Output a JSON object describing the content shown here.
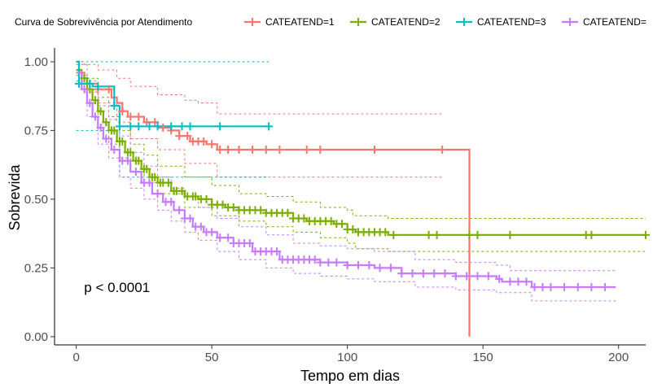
{
  "chart_data": {
    "type": "line",
    "subtype": "kaplan-meier",
    "title": "",
    "xlabel": "Tempo em dias",
    "ylabel": "Sobrevida",
    "xlim": [
      -8,
      210
    ],
    "ylim": [
      -0.03,
      1.05
    ],
    "xticks": [
      0,
      50,
      100,
      150,
      200
    ],
    "yticks": [
      0.0,
      0.25,
      0.5,
      0.75,
      1.0
    ],
    "xtick_labels": [
      "0",
      "50",
      "100",
      "150",
      "200"
    ],
    "ytick_labels": [
      "0.00",
      "0.25",
      "0.50",
      "0.75",
      "1.00"
    ],
    "grid": false,
    "legend": {
      "placement": "top",
      "title": "Curva de Sobrevivência por Atendimento",
      "entries": [
        "CATEATEND=1",
        "CATEATEND=2",
        "CATEATEND=3",
        "CATEATEND="
      ]
    },
    "annotations": [
      {
        "text": "p < 0.0001",
        "x": 2,
        "y": 0.18
      }
    ],
    "series": [
      {
        "name": "CATEATEND=1",
        "color": "#F8766D",
        "survival": [
          [
            0,
            1.0
          ],
          [
            1,
            0.96
          ],
          [
            3,
            0.94
          ],
          [
            4,
            0.92
          ],
          [
            8,
            0.9
          ],
          [
            13,
            0.87
          ],
          [
            15,
            0.85
          ],
          [
            17,
            0.82
          ],
          [
            19,
            0.8
          ],
          [
            25,
            0.78
          ],
          [
            30,
            0.76
          ],
          [
            35,
            0.75
          ],
          [
            38,
            0.73
          ],
          [
            42,
            0.71
          ],
          [
            48,
            0.7
          ],
          [
            52,
            0.68
          ],
          [
            145,
            0.68
          ],
          [
            145,
            0.0
          ]
        ],
        "upper": [
          [
            0,
            1.0
          ],
          [
            3,
            0.99
          ],
          [
            8,
            0.97
          ],
          [
            15,
            0.94
          ],
          [
            20,
            0.91
          ],
          [
            30,
            0.88
          ],
          [
            40,
            0.86
          ],
          [
            45,
            0.85
          ],
          [
            52,
            0.81
          ],
          [
            135,
            0.81
          ]
        ],
        "lower": [
          [
            0,
            0.93
          ],
          [
            3,
            0.89
          ],
          [
            8,
            0.85
          ],
          [
            15,
            0.78
          ],
          [
            20,
            0.72
          ],
          [
            30,
            0.68
          ],
          [
            40,
            0.63
          ],
          [
            52,
            0.58
          ],
          [
            135,
            0.58
          ]
        ],
        "censor_x": [
          8,
          12,
          17,
          20,
          23,
          26,
          29,
          32,
          35,
          38,
          41,
          43,
          45,
          47,
          50,
          53,
          56,
          60,
          65,
          70,
          75,
          85,
          90,
          110,
          135
        ]
      },
      {
        "name": "CATEATEND=2",
        "color": "#7CAE00",
        "survival": [
          [
            0,
            0.97
          ],
          [
            2,
            0.94
          ],
          [
            4,
            0.9
          ],
          [
            6,
            0.86
          ],
          [
            8,
            0.82
          ],
          [
            10,
            0.78
          ],
          [
            12,
            0.75
          ],
          [
            15,
            0.71
          ],
          [
            18,
            0.67
          ],
          [
            21,
            0.64
          ],
          [
            24,
            0.61
          ],
          [
            27,
            0.58
          ],
          [
            30,
            0.56
          ],
          [
            35,
            0.53
          ],
          [
            40,
            0.51
          ],
          [
            45,
            0.5
          ],
          [
            50,
            0.48
          ],
          [
            55,
            0.47
          ],
          [
            60,
            0.46
          ],
          [
            70,
            0.45
          ],
          [
            75,
            0.45
          ],
          [
            80,
            0.43
          ],
          [
            85,
            0.42
          ],
          [
            95,
            0.41
          ],
          [
            100,
            0.39
          ],
          [
            103,
            0.38
          ],
          [
            115,
            0.37
          ],
          [
            210,
            0.37
          ]
        ],
        "upper": [
          [
            0,
            0.99
          ],
          [
            4,
            0.94
          ],
          [
            8,
            0.87
          ],
          [
            12,
            0.8
          ],
          [
            16,
            0.75
          ],
          [
            20,
            0.7
          ],
          [
            25,
            0.66
          ],
          [
            30,
            0.62
          ],
          [
            40,
            0.58
          ],
          [
            50,
            0.55
          ],
          [
            60,
            0.52
          ],
          [
            70,
            0.51
          ],
          [
            80,
            0.49
          ],
          [
            90,
            0.47
          ],
          [
            100,
            0.46
          ],
          [
            102,
            0.44
          ],
          [
            115,
            0.43
          ],
          [
            210,
            0.43
          ]
        ],
        "lower": [
          [
            0,
            0.95
          ],
          [
            4,
            0.85
          ],
          [
            8,
            0.77
          ],
          [
            12,
            0.7
          ],
          [
            16,
            0.65
          ],
          [
            20,
            0.6
          ],
          [
            25,
            0.56
          ],
          [
            30,
            0.52
          ],
          [
            40,
            0.47
          ],
          [
            50,
            0.44
          ],
          [
            60,
            0.42
          ],
          [
            70,
            0.4
          ],
          [
            80,
            0.38
          ],
          [
            90,
            0.36
          ],
          [
            100,
            0.34
          ],
          [
            103,
            0.32
          ],
          [
            115,
            0.31
          ],
          [
            210,
            0.31
          ]
        ],
        "censor_x": [
          3,
          5,
          7,
          9,
          11,
          13,
          14,
          16,
          17,
          19,
          20,
          22,
          23,
          25,
          26,
          28,
          29,
          31,
          32,
          34,
          36,
          37,
          39,
          41,
          43,
          44,
          46,
          48,
          50,
          52,
          54,
          56,
          58,
          60,
          62,
          64,
          66,
          68,
          70,
          72,
          74,
          76,
          78,
          80,
          82,
          84,
          86,
          88,
          90,
          92,
          94,
          96,
          98,
          100,
          102,
          104,
          106,
          108,
          110,
          112,
          114,
          117,
          130,
          133,
          145,
          148,
          160,
          188,
          190,
          210
        ]
      },
      {
        "name": "CATEATEND=3",
        "color": "#00BFC4",
        "survival": [
          [
            0,
            1.0
          ],
          [
            1,
            0.92
          ],
          [
            6,
            0.92
          ],
          [
            6,
            0.91
          ],
          [
            14,
            0.91
          ],
          [
            14,
            0.84
          ],
          [
            16,
            0.84
          ],
          [
            16,
            0.765
          ],
          [
            71,
            0.765
          ]
        ],
        "upper": [
          [
            0,
            1.0
          ],
          [
            71,
            1.0
          ]
        ],
        "lower": [
          [
            0,
            0.75
          ],
          [
            16,
            0.58
          ],
          [
            71,
            0.58
          ]
        ],
        "censor_x": [
          1,
          5,
          8,
          14,
          16,
          20,
          23,
          27,
          30,
          35,
          39,
          42,
          53,
          71
        ]
      },
      {
        "name": "CATEATEND=",
        "color": "#C77CFF",
        "survival": [
          [
            0,
            0.96
          ],
          [
            2,
            0.9
          ],
          [
            4,
            0.85
          ],
          [
            6,
            0.8
          ],
          [
            8,
            0.76
          ],
          [
            10,
            0.72
          ],
          [
            13,
            0.68
          ],
          [
            16,
            0.64
          ],
          [
            20,
            0.6
          ],
          [
            24,
            0.56
          ],
          [
            28,
            0.52
          ],
          [
            32,
            0.49
          ],
          [
            36,
            0.46
          ],
          [
            40,
            0.43
          ],
          [
            43,
            0.4
          ],
          [
            47,
            0.38
          ],
          [
            52,
            0.36
          ],
          [
            58,
            0.34
          ],
          [
            65,
            0.31
          ],
          [
            75,
            0.28
          ],
          [
            90,
            0.27
          ],
          [
            100,
            0.26
          ],
          [
            110,
            0.25
          ],
          [
            120,
            0.23
          ],
          [
            135,
            0.23
          ],
          [
            140,
            0.22
          ],
          [
            155,
            0.21
          ],
          [
            157,
            0.2
          ],
          [
            168,
            0.18
          ],
          [
            199,
            0.18
          ]
        ],
        "upper": [
          [
            0,
            0.99
          ],
          [
            4,
            0.93
          ],
          [
            8,
            0.84
          ],
          [
            12,
            0.79
          ],
          [
            16,
            0.73
          ],
          [
            20,
            0.67
          ],
          [
            25,
            0.62
          ],
          [
            30,
            0.58
          ],
          [
            35,
            0.54
          ],
          [
            40,
            0.51
          ],
          [
            45,
            0.47
          ],
          [
            52,
            0.43
          ],
          [
            60,
            0.4
          ],
          [
            70,
            0.37
          ],
          [
            80,
            0.34
          ],
          [
            90,
            0.33
          ],
          [
            100,
            0.32
          ],
          [
            110,
            0.31
          ],
          [
            125,
            0.28
          ],
          [
            140,
            0.27
          ],
          [
            155,
            0.26
          ],
          [
            160,
            0.24
          ],
          [
            199,
            0.24
          ]
        ],
        "lower": [
          [
            0,
            0.93
          ],
          [
            4,
            0.8
          ],
          [
            8,
            0.7
          ],
          [
            12,
            0.65
          ],
          [
            16,
            0.58
          ],
          [
            20,
            0.54
          ],
          [
            25,
            0.5
          ],
          [
            30,
            0.46
          ],
          [
            35,
            0.42
          ],
          [
            40,
            0.38
          ],
          [
            45,
            0.35
          ],
          [
            52,
            0.31
          ],
          [
            60,
            0.28
          ],
          [
            70,
            0.25
          ],
          [
            80,
            0.23
          ],
          [
            90,
            0.22
          ],
          [
            100,
            0.21
          ],
          [
            110,
            0.2
          ],
          [
            125,
            0.18
          ],
          [
            140,
            0.17
          ],
          [
            155,
            0.16
          ],
          [
            168,
            0.13
          ],
          [
            199,
            0.13
          ]
        ],
        "censor_x": [
          3,
          5,
          7,
          9,
          11,
          14,
          17,
          19,
          22,
          25,
          27,
          30,
          33,
          35,
          38,
          40,
          42,
          44,
          46,
          48,
          50,
          53,
          56,
          58,
          60,
          62,
          64,
          66,
          68,
          70,
          72,
          74,
          76,
          78,
          80,
          82,
          84,
          86,
          88,
          90,
          93,
          96,
          100,
          104,
          108,
          112,
          116,
          120,
          124,
          128,
          132,
          136,
          140,
          144,
          148,
          152,
          156,
          160,
          163,
          166,
          169,
          172,
          175,
          180,
          185,
          190,
          195
        ]
      }
    ]
  }
}
